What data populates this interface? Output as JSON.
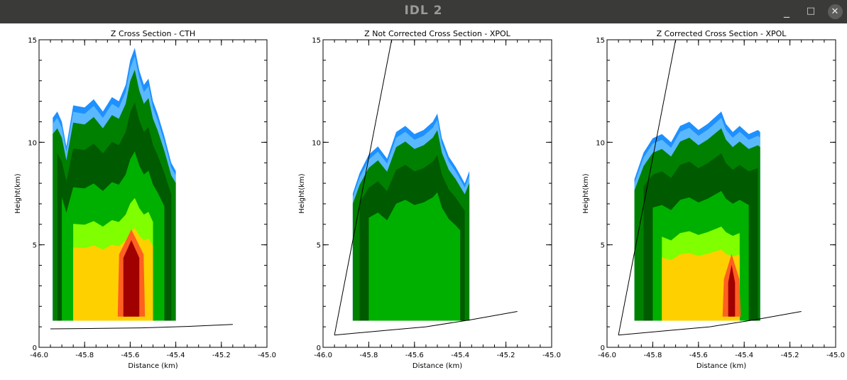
{
  "window": {
    "title": "IDL 2",
    "minimize_label": "_",
    "maximize_label": "□",
    "close_label": "✕"
  },
  "colors": {
    "titlebar": "#3a3a38",
    "missing": "#ffffff",
    "scale": [
      "#1e90ff",
      "#5ab8ff",
      "#008000",
      "#005a00",
      "#00b000",
      "#7fff00",
      "#ffd000",
      "#ffa040",
      "#ff6020",
      "#c02000",
      "#a00000"
    ]
  },
  "chart_data": [
    {
      "type": "heatmap",
      "title": "Z Cross Section - CTH",
      "xlabel": "Distance (km)",
      "ylabel": "Height(km)",
      "xlim": [
        -46.0,
        -45.0
      ],
      "ylim": [
        0,
        15
      ],
      "xticks": [
        "-46.0",
        "-45.8",
        "-45.6",
        "-45.4",
        "-45.2",
        "-45.0"
      ],
      "yticks": [
        "0",
        "5",
        "10",
        "15"
      ],
      "beam_lines": [
        {
          "x": [
            -45.95,
            -45.75,
            -45.55,
            -45.35,
            -45.15
          ],
          "y": [
            0.9,
            0.92,
            0.95,
            1.02,
            1.12
          ]
        }
      ],
      "echo_top": {
        "x": [
          -45.94,
          -45.92,
          -45.9,
          -45.88,
          -45.85,
          -45.8,
          -45.76,
          -45.72,
          -45.68,
          -45.65,
          -45.62,
          -45.6,
          -45.58,
          -45.56,
          -45.54,
          -45.52,
          -45.5,
          -45.48,
          -45.45,
          -45.42,
          -45.4
        ],
        "y": [
          11.2,
          11.5,
          11.0,
          9.8,
          11.8,
          11.7,
          12.1,
          11.5,
          12.2,
          12.0,
          12.8,
          14.0,
          14.6,
          13.5,
          12.8,
          13.1,
          12.0,
          11.4,
          10.3,
          9.0,
          8.6
        ]
      },
      "echo_base": 1.3,
      "max_reflectivity_core": {
        "x": [
          -45.63,
          -45.56
        ],
        "top": 5.4
      }
    },
    {
      "type": "heatmap",
      "title": "Z Not Corrected Cross Section - XPOL",
      "xlabel": "Distance (km)",
      "ylabel": "Height(km)",
      "xlim": [
        -46.0,
        -45.0
      ],
      "ylim": [
        0,
        15
      ],
      "xticks": [
        "-46.0",
        "-45.8",
        "-45.6",
        "-45.4",
        "-45.2",
        "-45.0"
      ],
      "yticks": [
        "0",
        "5",
        "10",
        "15"
      ],
      "beam_lines": [
        {
          "x": [
            -45.95,
            -45.7
          ],
          "y": [
            0.6,
            15.0
          ]
        },
        {
          "x": [
            -45.95,
            -45.75,
            -45.55,
            -45.35,
            -45.15
          ],
          "y": [
            0.6,
            0.8,
            1.0,
            1.35,
            1.75
          ]
        }
      ],
      "echo_top": {
        "x": [
          -45.87,
          -45.84,
          -45.8,
          -45.76,
          -45.72,
          -45.68,
          -45.64,
          -45.6,
          -45.56,
          -45.52,
          -45.5,
          -45.48,
          -45.45,
          -45.42,
          -45.4,
          -45.38,
          -45.36
        ],
        "y": [
          7.5,
          8.5,
          9.4,
          9.8,
          9.2,
          10.5,
          10.8,
          10.4,
          10.6,
          11.0,
          11.4,
          10.2,
          9.3,
          8.8,
          8.4,
          8.0,
          8.6
        ]
      },
      "echo_base": 1.3,
      "max_reflectivity_core": null
    },
    {
      "type": "heatmap",
      "title": "Z Corrected Cross Section - XPOL",
      "xlabel": "Distance (km)",
      "ylabel": "Height(km)",
      "xlim": [
        -46.0,
        -45.0
      ],
      "ylim": [
        0,
        15
      ],
      "xticks": [
        "-46.0",
        "-45.8",
        "-45.6",
        "-45.4",
        "-45.2",
        "-45.0"
      ],
      "yticks": [
        "0",
        "5",
        "10",
        "15"
      ],
      "beam_lines": [
        {
          "x": [
            -45.95,
            -45.7
          ],
          "y": [
            0.6,
            15.0
          ]
        },
        {
          "x": [
            -45.95,
            -45.75,
            -45.55,
            -45.35,
            -45.15
          ],
          "y": [
            0.6,
            0.8,
            1.0,
            1.35,
            1.75
          ]
        }
      ],
      "echo_top": {
        "x": [
          -45.88,
          -45.84,
          -45.8,
          -45.76,
          -45.72,
          -45.68,
          -45.64,
          -45.6,
          -45.56,
          -45.52,
          -45.5,
          -45.48,
          -45.45,
          -45.42,
          -45.38,
          -45.34,
          -45.33
        ],
        "y": [
          8.2,
          9.5,
          10.2,
          10.4,
          10.0,
          10.8,
          11.0,
          10.6,
          10.9,
          11.3,
          11.5,
          10.9,
          10.5,
          10.8,
          10.4,
          10.6,
          10.5
        ]
      },
      "echo_base": 1.3,
      "max_reflectivity_core": {
        "x": [
          -45.47,
          -45.44
        ],
        "top": 4.2
      }
    }
  ]
}
